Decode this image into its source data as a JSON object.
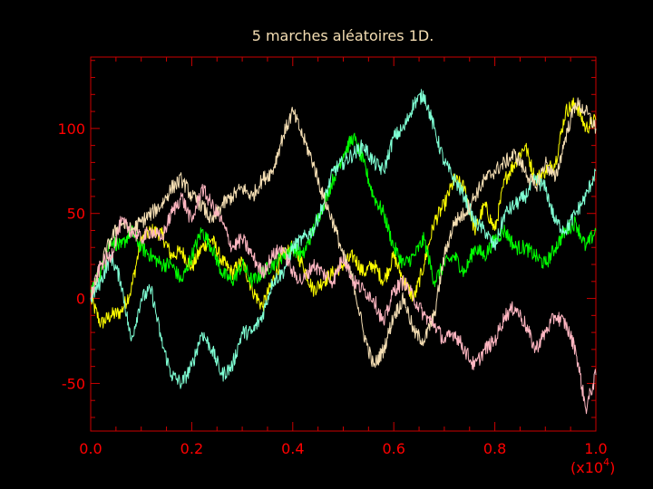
{
  "chart_data": {
    "type": "line",
    "title": "5 marches aléatoires 1D.",
    "xlabel": "",
    "ylabel": "",
    "x_multiplier_label": "(x10",
    "x_multiplier_exponent": "4",
    "x_multiplier_close": ")",
    "xlim": [
      0.0,
      1.0
    ],
    "ylim": [
      -78,
      142
    ],
    "x_tick_values": [
      0.0,
      0.2,
      0.4,
      0.6,
      0.8,
      1.0
    ],
    "x_tick_labels": [
      "0.0",
      "0.2",
      "0.4",
      "0.6",
      "0.8",
      "1.0"
    ],
    "y_tick_values": [
      -50,
      0,
      50,
      100
    ],
    "y_tick_labels": [
      "-50",
      "0",
      "50",
      "100"
    ],
    "grid": false,
    "legend": "none",
    "colors": {
      "background": "#000000",
      "axes": "#cc0000",
      "tick_text": "#ff0000",
      "title": "#f5deb3"
    },
    "series": [
      {
        "color": "#ffff00",
        "x": [
          0.0,
          0.02,
          0.04,
          0.06,
          0.08,
          0.1,
          0.12,
          0.14,
          0.16,
          0.18,
          0.2,
          0.22,
          0.24,
          0.26,
          0.28,
          0.3,
          0.32,
          0.34,
          0.36,
          0.38,
          0.4,
          0.42,
          0.44,
          0.46,
          0.48,
          0.5,
          0.52,
          0.54,
          0.56,
          0.58,
          0.6,
          0.62,
          0.64,
          0.66,
          0.68,
          0.7,
          0.72,
          0.74,
          0.76,
          0.78,
          0.8,
          0.82,
          0.84,
          0.86,
          0.88,
          0.9,
          0.92,
          0.94,
          0.96,
          0.98,
          1.0
        ],
        "values": [
          0,
          -15,
          -10,
          -8,
          5,
          35,
          40,
          38,
          25,
          28,
          18,
          30,
          35,
          22,
          15,
          22,
          5,
          -5,
          10,
          25,
          30,
          20,
          5,
          10,
          15,
          20,
          25,
          15,
          20,
          10,
          25,
          10,
          0,
          20,
          45,
          55,
          70,
          65,
          40,
          55,
          40,
          70,
          80,
          90,
          70,
          75,
          80,
          110,
          115,
          100,
          105
        ]
      },
      {
        "color": "#00ff00",
        "x": [
          0.0,
          0.02,
          0.04,
          0.06,
          0.08,
          0.1,
          0.12,
          0.14,
          0.16,
          0.18,
          0.2,
          0.22,
          0.24,
          0.26,
          0.28,
          0.3,
          0.32,
          0.34,
          0.36,
          0.38,
          0.4,
          0.42,
          0.44,
          0.46,
          0.48,
          0.5,
          0.52,
          0.54,
          0.56,
          0.58,
          0.6,
          0.62,
          0.64,
          0.66,
          0.68,
          0.7,
          0.72,
          0.74,
          0.76,
          0.78,
          0.8,
          0.82,
          0.84,
          0.86,
          0.88,
          0.9,
          0.92,
          0.94,
          0.96,
          0.98,
          1.0
        ],
        "values": [
          5,
          15,
          35,
          30,
          40,
          30,
          25,
          20,
          20,
          10,
          25,
          40,
          30,
          15,
          10,
          20,
          10,
          15,
          20,
          25,
          30,
          25,
          40,
          55,
          70,
          85,
          95,
          80,
          60,
          50,
          30,
          20,
          25,
          35,
          10,
          20,
          25,
          15,
          30,
          25,
          35,
          40,
          30,
          30,
          25,
          20,
          30,
          40,
          45,
          30,
          40
        ]
      },
      {
        "color": "#7fffd4",
        "x": [
          0.0,
          0.02,
          0.04,
          0.06,
          0.08,
          0.1,
          0.12,
          0.14,
          0.16,
          0.18,
          0.2,
          0.22,
          0.24,
          0.26,
          0.28,
          0.3,
          0.32,
          0.34,
          0.36,
          0.38,
          0.4,
          0.42,
          0.44,
          0.46,
          0.48,
          0.5,
          0.52,
          0.54,
          0.56,
          0.58,
          0.6,
          0.62,
          0.64,
          0.66,
          0.68,
          0.7,
          0.72,
          0.74,
          0.76,
          0.78,
          0.8,
          0.82,
          0.84,
          0.86,
          0.88,
          0.9,
          0.92,
          0.94,
          0.96,
          0.98,
          1.0
        ],
        "values": [
          0,
          10,
          25,
          10,
          -25,
          0,
          5,
          -25,
          -45,
          -50,
          -40,
          -20,
          -30,
          -45,
          -40,
          -20,
          -20,
          -10,
          10,
          15,
          30,
          35,
          40,
          55,
          75,
          80,
          85,
          90,
          80,
          75,
          95,
          100,
          115,
          120,
          100,
          80,
          70,
          60,
          45,
          40,
          30,
          50,
          55,
          60,
          70,
          65,
          45,
          40,
          50,
          60,
          75
        ]
      },
      {
        "color": "#f5deb3",
        "x": [
          0.0,
          0.02,
          0.04,
          0.06,
          0.08,
          0.1,
          0.12,
          0.14,
          0.16,
          0.18,
          0.2,
          0.22,
          0.24,
          0.26,
          0.28,
          0.3,
          0.32,
          0.34,
          0.36,
          0.38,
          0.4,
          0.42,
          0.44,
          0.46,
          0.48,
          0.5,
          0.52,
          0.54,
          0.56,
          0.58,
          0.6,
          0.62,
          0.64,
          0.66,
          0.68,
          0.7,
          0.72,
          0.74,
          0.76,
          0.78,
          0.8,
          0.82,
          0.84,
          0.86,
          0.88,
          0.9,
          0.92,
          0.94,
          0.96,
          0.98,
          1.0
        ],
        "values": [
          0,
          20,
          35,
          45,
          40,
          45,
          50,
          55,
          65,
          70,
          60,
          55,
          45,
          55,
          60,
          65,
          60,
          70,
          75,
          95,
          110,
          95,
          80,
          60,
          45,
          25,
          10,
          -20,
          -40,
          -30,
          -10,
          0,
          -20,
          -25,
          -10,
          25,
          45,
          50,
          60,
          70,
          75,
          80,
          85,
          75,
          65,
          80,
          70,
          95,
          115,
          110,
          100
        ]
      },
      {
        "color": "#ffb6c1",
        "x": [
          0.0,
          0.02,
          0.04,
          0.06,
          0.08,
          0.1,
          0.12,
          0.14,
          0.16,
          0.18,
          0.2,
          0.22,
          0.24,
          0.26,
          0.28,
          0.3,
          0.32,
          0.34,
          0.36,
          0.38,
          0.4,
          0.42,
          0.44,
          0.46,
          0.48,
          0.5,
          0.52,
          0.54,
          0.56,
          0.58,
          0.6,
          0.62,
          0.64,
          0.66,
          0.68,
          0.7,
          0.72,
          0.74,
          0.76,
          0.78,
          0.8,
          0.82,
          0.84,
          0.86,
          0.88,
          0.9,
          0.92,
          0.94,
          0.96,
          0.98,
          1.0
        ],
        "values": [
          0,
          20,
          25,
          45,
          40,
          35,
          40,
          35,
          50,
          60,
          45,
          65,
          55,
          45,
          30,
          35,
          25,
          15,
          25,
          30,
          15,
          10,
          20,
          15,
          10,
          25,
          10,
          5,
          0,
          -15,
          5,
          10,
          0,
          -10,
          -15,
          -25,
          -20,
          -30,
          -40,
          -30,
          -25,
          -10,
          -5,
          -15,
          -30,
          -20,
          -10,
          -15,
          -30,
          -65,
          -45
        ]
      }
    ]
  }
}
